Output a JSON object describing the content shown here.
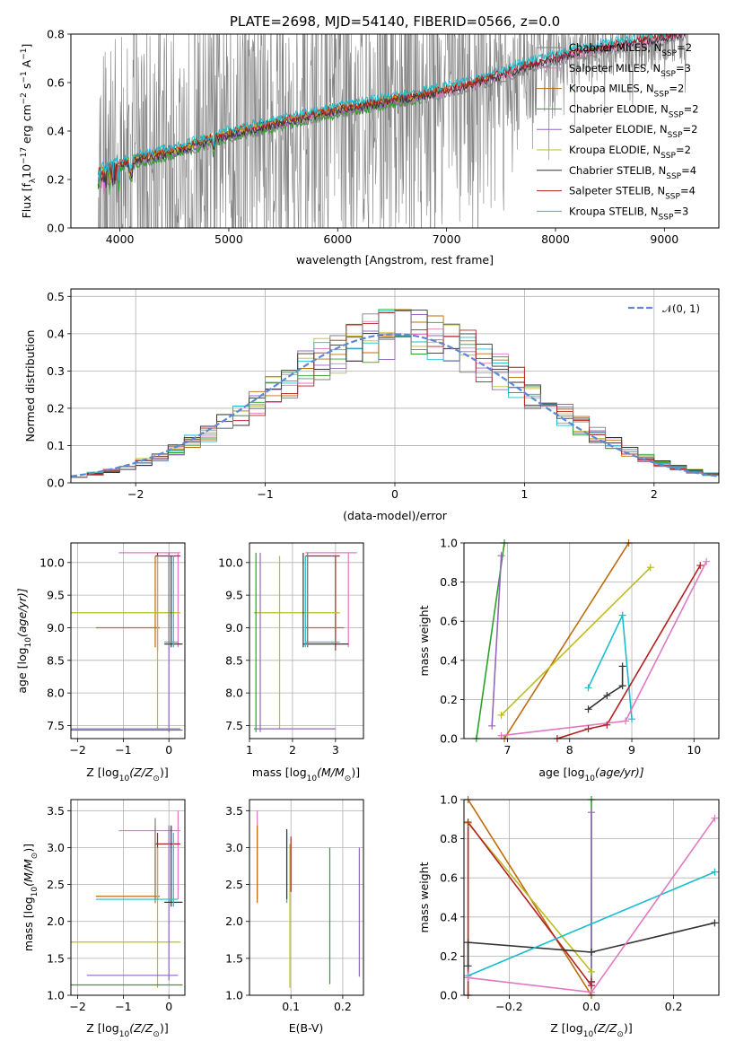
{
  "title": "PLATE=2698, MJD=54140, FIBERID=0566, z=0.0",
  "chart_data": [
    {
      "id": "spectrum",
      "type": "line",
      "xlabel": "wavelength [Angstrom, rest frame]",
      "ylabel": "Flux [f",
      "ylabel_parts": [
        "Flux [f",
        "λ",
        "10",
        "−17",
        " erg cm",
        "−2",
        " s",
        "−1",
        " A",
        "−1",
        "]"
      ],
      "xlim": [
        3550,
        9500
      ],
      "ylim": [
        0,
        0.8
      ],
      "xticks": [
        4000,
        5000,
        6000,
        7000,
        8000,
        9000
      ],
      "yticks": [
        0.0,
        0.2,
        0.4,
        0.6,
        0.8
      ],
      "grid": false,
      "legend_position": "top-right",
      "data_color": "#808080",
      "models": [
        {
          "imf": "Chabrier",
          "lib": "MILES",
          "n": "2",
          "color": "#7f7f7f"
        },
        {
          "imf": "Salpeter",
          "lib": "MILES",
          "n": "3",
          "color": "#e377c2"
        },
        {
          "imf": "Kroupa",
          "lib": "MILES",
          "n": "2",
          "color": "#bd6b0b"
        },
        {
          "imf": "Chabrier",
          "lib": "ELODIE",
          "n": "2",
          "color": "#2ca02c"
        },
        {
          "imf": "Salpeter",
          "lib": "ELODIE",
          "n": "2",
          "color": "#9467bd"
        },
        {
          "imf": "Kroupa",
          "lib": "ELODIE",
          "n": "2",
          "color": "#bcbd22"
        },
        {
          "imf": "Chabrier",
          "lib": "STELIB",
          "n": "4",
          "color": "#333333"
        },
        {
          "imf": "Salpeter",
          "lib": "STELIB",
          "n": "4",
          "color": "#b22222"
        },
        {
          "imf": "Kroupa",
          "lib": "STELIB",
          "n": "3",
          "color": "#17becf"
        }
      ],
      "legend_entries": [
        "Chabrier MILES, N",
        "Salpeter MILES, N",
        "Kroupa MILES, N",
        "Chabrier ELODIE, N",
        "Salpeter ELODIE, N",
        "Kroupa ELODIE, N",
        "Chabrier STELIB, N",
        "Salpeter STELIB, N",
        "Kroupa STELIB, N"
      ],
      "legend_sub": "SSP",
      "model_trend": {
        "x": [
          3800,
          4000,
          4500,
          5000,
          5500,
          6000,
          6500,
          7000,
          7400,
          7800,
          8200,
          8600,
          9000,
          9200
        ],
        "y": [
          0.22,
          0.26,
          0.31,
          0.38,
          0.43,
          0.48,
          0.52,
          0.56,
          0.61,
          0.67,
          0.72,
          0.75,
          0.78,
          0.8
        ]
      }
    },
    {
      "id": "residuals",
      "type": "histogram",
      "xlabel": "(data-model)/error",
      "ylabel": "Normed distribution",
      "xlim": [
        -2.5,
        2.5
      ],
      "ylim": [
        0,
        0.52
      ],
      "xticks": [
        -2,
        -1,
        0,
        1,
        2
      ],
      "yticks": [
        0.0,
        0.1,
        0.2,
        0.3,
        0.4,
        0.5
      ],
      "grid": true,
      "legend_position": "top-right",
      "legend_label": "𝒩(0, 1)",
      "gaussian_color": "#5a8ad6",
      "bin_width": 0.125,
      "hist_colors": [
        "#bcbd22",
        "#9467bd",
        "#e377c2",
        "#2ca02c",
        "#bd6b0b",
        "#17becf",
        "#333333",
        "#b22222",
        "#7f7f7f"
      ]
    },
    {
      "id": "age_vs_Z",
      "type": "errorbar",
      "xlabel": "Z [log",
      "xlabel_full": [
        "Z [log",
        "10",
        "(Z/Z",
        "⊙",
        ")]"
      ],
      "ylabel_full": [
        "age  [log",
        "10",
        "(age/yr)]"
      ],
      "xlim": [
        -2.15,
        0.35
      ],
      "ylim": [
        7.3,
        10.3
      ],
      "xticks": [
        -2,
        -1,
        0
      ],
      "yticks": [
        7.5,
        8.0,
        8.5,
        9.0,
        9.5,
        10.0
      ],
      "grid": true,
      "segments": [
        {
          "c": "#e377c2",
          "x": [
            -1.1,
            0.25
          ],
          "y": [
            10.15,
            10.15
          ]
        },
        {
          "c": "#e377c2",
          "x": [
            0.2,
            0.2
          ],
          "y": [
            8.7,
            10.15
          ]
        },
        {
          "c": "#b22222",
          "x": [
            -0.3,
            0.25
          ],
          "y": [
            10.1,
            10.1
          ]
        },
        {
          "c": "#b22222",
          "x": [
            -0.25,
            -0.25
          ],
          "y": [
            8.65,
            10.15
          ]
        },
        {
          "c": "#bd6b0b",
          "x": [
            -1.6,
            -0.2
          ],
          "y": [
            9.0,
            9.0
          ]
        },
        {
          "c": "#bd6b0b",
          "x": [
            -0.3,
            -0.3
          ],
          "y": [
            8.7,
            10.1
          ]
        },
        {
          "c": "#bcbd22",
          "x": [
            -2.15,
            0.25
          ],
          "y": [
            9.23,
            9.23
          ]
        },
        {
          "c": "#bcbd22",
          "x": [
            -0.25,
            -0.25
          ],
          "y": [
            7.45,
            10.1
          ]
        },
        {
          "c": "#9467bd",
          "x": [
            -2.15,
            0.25
          ],
          "y": [
            7.45,
            7.45
          ]
        },
        {
          "c": "#9467bd",
          "x": [
            0.0,
            0.0
          ],
          "y": [
            7.4,
            10.15
          ]
        },
        {
          "c": "#2ca02c",
          "x": [
            -2.15,
            0.3
          ],
          "y": [
            7.43,
            7.43
          ]
        },
        {
          "c": "#333333",
          "x": [
            -0.1,
            0.3
          ],
          "y": [
            8.75,
            8.75
          ]
        },
        {
          "c": "#333333",
          "x": [
            0.05,
            0.05
          ],
          "y": [
            8.7,
            10.1
          ]
        },
        {
          "c": "#17becf",
          "x": [
            -0.1,
            0.2
          ],
          "y": [
            8.78,
            8.78
          ]
        },
        {
          "c": "#17becf",
          "x": [
            0.1,
            0.1
          ],
          "y": [
            8.7,
            10.1
          ]
        },
        {
          "c": "#7f7f7f",
          "x": [
            0.0,
            0.0
          ],
          "y": [
            8.75,
            10.1
          ]
        }
      ]
    },
    {
      "id": "age_vs_mass",
      "type": "errorbar",
      "xlabel_full": [
        "mass [log",
        "10",
        "(M/M",
        "⊙",
        ")]"
      ],
      "xlim": [
        1.0,
        3.65
      ],
      "ylim": [
        7.3,
        10.3
      ],
      "xticks": [
        1,
        2,
        3
      ],
      "yticks": [
        7.5,
        8.0,
        8.5,
        9.0,
        9.5,
        10.0
      ],
      "grid": true,
      "segments": [
        {
          "c": "#e377c2",
          "x": [
            2.3,
            3.5
          ],
          "y": [
            10.15,
            10.15
          ]
        },
        {
          "c": "#e377c2",
          "x": [
            3.3,
            3.3
          ],
          "y": [
            8.7,
            10.15
          ]
        },
        {
          "c": "#b22222",
          "x": [
            2.3,
            3.1
          ],
          "y": [
            10.1,
            10.1
          ]
        },
        {
          "c": "#b22222",
          "x": [
            3.0,
            3.0
          ],
          "y": [
            8.65,
            10.1
          ]
        },
        {
          "c": "#bd6b0b",
          "x": [
            2.3,
            3.2
          ],
          "y": [
            9.0,
            9.0
          ]
        },
        {
          "c": "#bd6b0b",
          "x": [
            2.35,
            2.35
          ],
          "y": [
            8.7,
            10.1
          ]
        },
        {
          "c": "#bcbd22",
          "x": [
            1.1,
            3.1
          ],
          "y": [
            9.23,
            9.23
          ]
        },
        {
          "c": "#bcbd22",
          "x": [
            1.7,
            1.7
          ],
          "y": [
            7.45,
            10.1
          ]
        },
        {
          "c": "#9467bd",
          "x": [
            1.1,
            3.0
          ],
          "y": [
            7.45,
            7.45
          ]
        },
        {
          "c": "#9467bd",
          "x": [
            1.25,
            1.25
          ],
          "y": [
            7.4,
            10.15
          ]
        },
        {
          "c": "#2ca02c",
          "x": [
            1.15,
            1.15
          ],
          "y": [
            7.4,
            10.15
          ]
        },
        {
          "c": "#333333",
          "x": [
            2.25,
            3.3
          ],
          "y": [
            8.75,
            8.75
          ]
        },
        {
          "c": "#333333",
          "x": [
            2.25,
            2.25
          ],
          "y": [
            8.7,
            10.15
          ]
        },
        {
          "c": "#17becf",
          "x": [
            2.3,
            3.1
          ],
          "y": [
            8.78,
            8.78
          ]
        },
        {
          "c": "#17becf",
          "x": [
            2.3,
            2.3
          ],
          "y": [
            8.7,
            10.1
          ]
        },
        {
          "c": "#7f7f7f",
          "x": [
            2.35,
            2.35
          ],
          "y": [
            8.7,
            10.15
          ]
        }
      ]
    },
    {
      "id": "weight_vs_age",
      "type": "line",
      "xlabel_full": [
        "age  [log",
        "10",
        "(age/yr)]"
      ],
      "ylabel": "mass weight",
      "xlim": [
        6.3,
        10.4
      ],
      "ylim": [
        0,
        1
      ],
      "xticks": [
        7,
        8,
        9,
        10
      ],
      "yticks": [
        0.0,
        0.2,
        0.4,
        0.6,
        0.8,
        1.0
      ],
      "grid": true,
      "series": [
        {
          "c": "#2ca02c",
          "x": [
            6.5,
            6.95
          ],
          "y": [
            0.0,
            1.0
          ]
        },
        {
          "c": "#9467bd",
          "x": [
            6.75,
            6.9
          ],
          "y": [
            0.065,
            0.935
          ]
        },
        {
          "c": "#bd6b0b",
          "x": [
            6.95,
            8.95
          ],
          "y": [
            0.0,
            1.0
          ]
        },
        {
          "c": "#bcbd22",
          "x": [
            6.9,
            9.3
          ],
          "y": [
            0.12,
            0.875
          ]
        },
        {
          "c": "#17becf",
          "x": [
            8.3,
            8.85,
            9.0
          ],
          "y": [
            0.26,
            0.63,
            0.1
          ]
        },
        {
          "c": "#333333",
          "x": [
            8.3,
            8.6,
            8.85,
            8.85
          ],
          "y": [
            0.15,
            0.22,
            0.27,
            0.37
          ]
        },
        {
          "c": "#b22222",
          "x": [
            7.8,
            8.3,
            8.6,
            10.1
          ],
          "y": [
            0.0,
            0.05,
            0.07,
            0.885
          ]
        },
        {
          "c": "#e377c2",
          "x": [
            6.9,
            8.9,
            10.2
          ],
          "y": [
            0.015,
            0.09,
            0.905
          ]
        }
      ]
    },
    {
      "id": "mass_vs_Z",
      "type": "errorbar",
      "xlabel_full": [
        "Z [log",
        "10",
        "(Z/Z",
        "⊙",
        ")]"
      ],
      "ylabel_full": [
        "mass [log",
        "10",
        "(M/M",
        "⊙",
        ")]"
      ],
      "xlim": [
        -2.15,
        0.35
      ],
      "ylim": [
        1.0,
        3.65
      ],
      "xticks": [
        -2,
        -1,
        0
      ],
      "yticks": [
        1.0,
        1.5,
        2.0,
        2.5,
        3.0,
        3.5
      ],
      "grid": true,
      "segments": [
        {
          "c": "#e377c2",
          "x": [
            -1.1,
            0.25
          ],
          "y": [
            3.23,
            3.23
          ]
        },
        {
          "c": "#e377c2",
          "x": [
            0.2,
            0.2
          ],
          "y": [
            2.3,
            3.5
          ]
        },
        {
          "c": "#b22222",
          "x": [
            -0.3,
            0.25
          ],
          "y": [
            3.05,
            3.05
          ]
        },
        {
          "c": "#b22222",
          "x": [
            -0.25,
            -0.25
          ],
          "y": [
            2.3,
            3.2
          ]
        },
        {
          "c": "#bd6b0b",
          "x": [
            -1.6,
            -0.2
          ],
          "y": [
            2.34,
            2.34
          ]
        },
        {
          "c": "#bd6b0b",
          "x": [
            -0.3,
            -0.3
          ],
          "y": [
            2.25,
            3.3
          ]
        },
        {
          "c": "#bcbd22",
          "x": [
            -2.15,
            0.25
          ],
          "y": [
            1.72,
            1.72
          ]
        },
        {
          "c": "#bcbd22",
          "x": [
            -0.25,
            -0.25
          ],
          "y": [
            1.1,
            3.0
          ]
        },
        {
          "c": "#9467bd",
          "x": [
            -1.8,
            0.2
          ],
          "y": [
            1.27,
            1.27
          ]
        },
        {
          "c": "#9467bd",
          "x": [
            0.0,
            0.0
          ],
          "y": [
            1.2,
            3.3
          ]
        },
        {
          "c": "#2ca02c",
          "x": [
            -2.15,
            0.3
          ],
          "y": [
            1.14,
            1.14
          ]
        },
        {
          "c": "#333333",
          "x": [
            -0.1,
            0.3
          ],
          "y": [
            2.26,
            2.26
          ]
        },
        {
          "c": "#333333",
          "x": [
            0.05,
            0.05
          ],
          "y": [
            2.2,
            3.3
          ]
        },
        {
          "c": "#17becf",
          "x": [
            -1.6,
            0.2
          ],
          "y": [
            2.3,
            2.3
          ]
        },
        {
          "c": "#17becf",
          "x": [
            0.1,
            0.1
          ],
          "y": [
            2.2,
            3.2
          ]
        },
        {
          "c": "#7f7f7f",
          "x": [
            -0.3,
            -0.3
          ],
          "y": [
            2.3,
            3.4
          ]
        }
      ]
    },
    {
      "id": "mass_vs_ebv",
      "type": "errorbar",
      "xlabel": "E(B-V)",
      "xlim": [
        0.02,
        0.24
      ],
      "ylim": [
        1.0,
        3.65
      ],
      "xticks": [
        0.1,
        0.2
      ],
      "yticks": [
        1.0,
        1.5,
        2.0,
        2.5,
        3.0,
        3.5
      ],
      "grid": true,
      "segments": [
        {
          "c": "#e377c2",
          "x": [
            0.035,
            0.035
          ],
          "y": [
            2.3,
            3.5
          ]
        },
        {
          "c": "#bd6b0b",
          "x": [
            0.035,
            0.035
          ],
          "y": [
            2.25,
            3.3
          ]
        },
        {
          "c": "#17becf",
          "x": [
            0.092,
            0.092
          ],
          "y": [
            2.25,
            3.2
          ]
        },
        {
          "c": "#333333",
          "x": [
            0.092,
            0.092
          ],
          "y": [
            2.3,
            3.25
          ]
        },
        {
          "c": "#bcbd22",
          "x": [
            0.098,
            0.098
          ],
          "y": [
            1.1,
            3.05
          ]
        },
        {
          "c": "#b22222",
          "x": [
            0.1,
            0.1
          ],
          "y": [
            2.4,
            3.15
          ]
        },
        {
          "c": "#2ca02c",
          "x": [
            0.175,
            0.175
          ],
          "y": [
            1.15,
            3.0
          ]
        },
        {
          "c": "#9467bd",
          "x": [
            0.232,
            0.232
          ],
          "y": [
            1.25,
            3.0
          ]
        }
      ]
    },
    {
      "id": "weight_vs_Z",
      "type": "line",
      "xlabel_full": [
        "Z [log",
        "10",
        "(Z/Z",
        "⊙",
        ")]"
      ],
      "ylabel": "mass weight",
      "xlim": [
        -0.31,
        0.31
      ],
      "ylim": [
        0,
        1
      ],
      "xticks": [
        -0.2,
        0.0,
        0.2
      ],
      "xticklabels": [
        "−0.2",
        "0.0",
        "0.2"
      ],
      "yticks": [
        0.0,
        0.2,
        0.4,
        0.6,
        0.8,
        1.0
      ],
      "grid": true,
      "series": [
        {
          "c": "#2ca02c",
          "x": [
            0.0,
            0.0
          ],
          "y": [
            0.0,
            1.0
          ]
        },
        {
          "c": "#9467bd",
          "x": [
            0.0,
            0.0
          ],
          "y": [
            0.065,
            0.935
          ]
        },
        {
          "c": "#bd6b0b",
          "x": [
            -0.3,
            0.0
          ],
          "y": [
            1.0,
            0.0
          ]
        },
        {
          "c": "#bcbd22",
          "x": [
            -0.3,
            0.0
          ],
          "y": [
            0.88,
            0.12
          ]
        },
        {
          "c": "#b22222",
          "x": [
            -0.3,
            -0.3,
            0.0,
            0.0
          ],
          "y": [
            0.0,
            0.885,
            0.05,
            0.07
          ]
        },
        {
          "c": "#333333",
          "x": [
            -0.3,
            -0.3,
            0.0,
            0.3
          ],
          "y": [
            0.15,
            0.27,
            0.22,
            0.37
          ]
        },
        {
          "c": "#17becf",
          "x": [
            -0.3,
            0.3
          ],
          "y": [
            0.1,
            0.63
          ]
        },
        {
          "c": "#e377c2",
          "x": [
            -0.3,
            0.0,
            0.3
          ],
          "y": [
            0.09,
            0.015,
            0.905
          ]
        }
      ]
    }
  ]
}
